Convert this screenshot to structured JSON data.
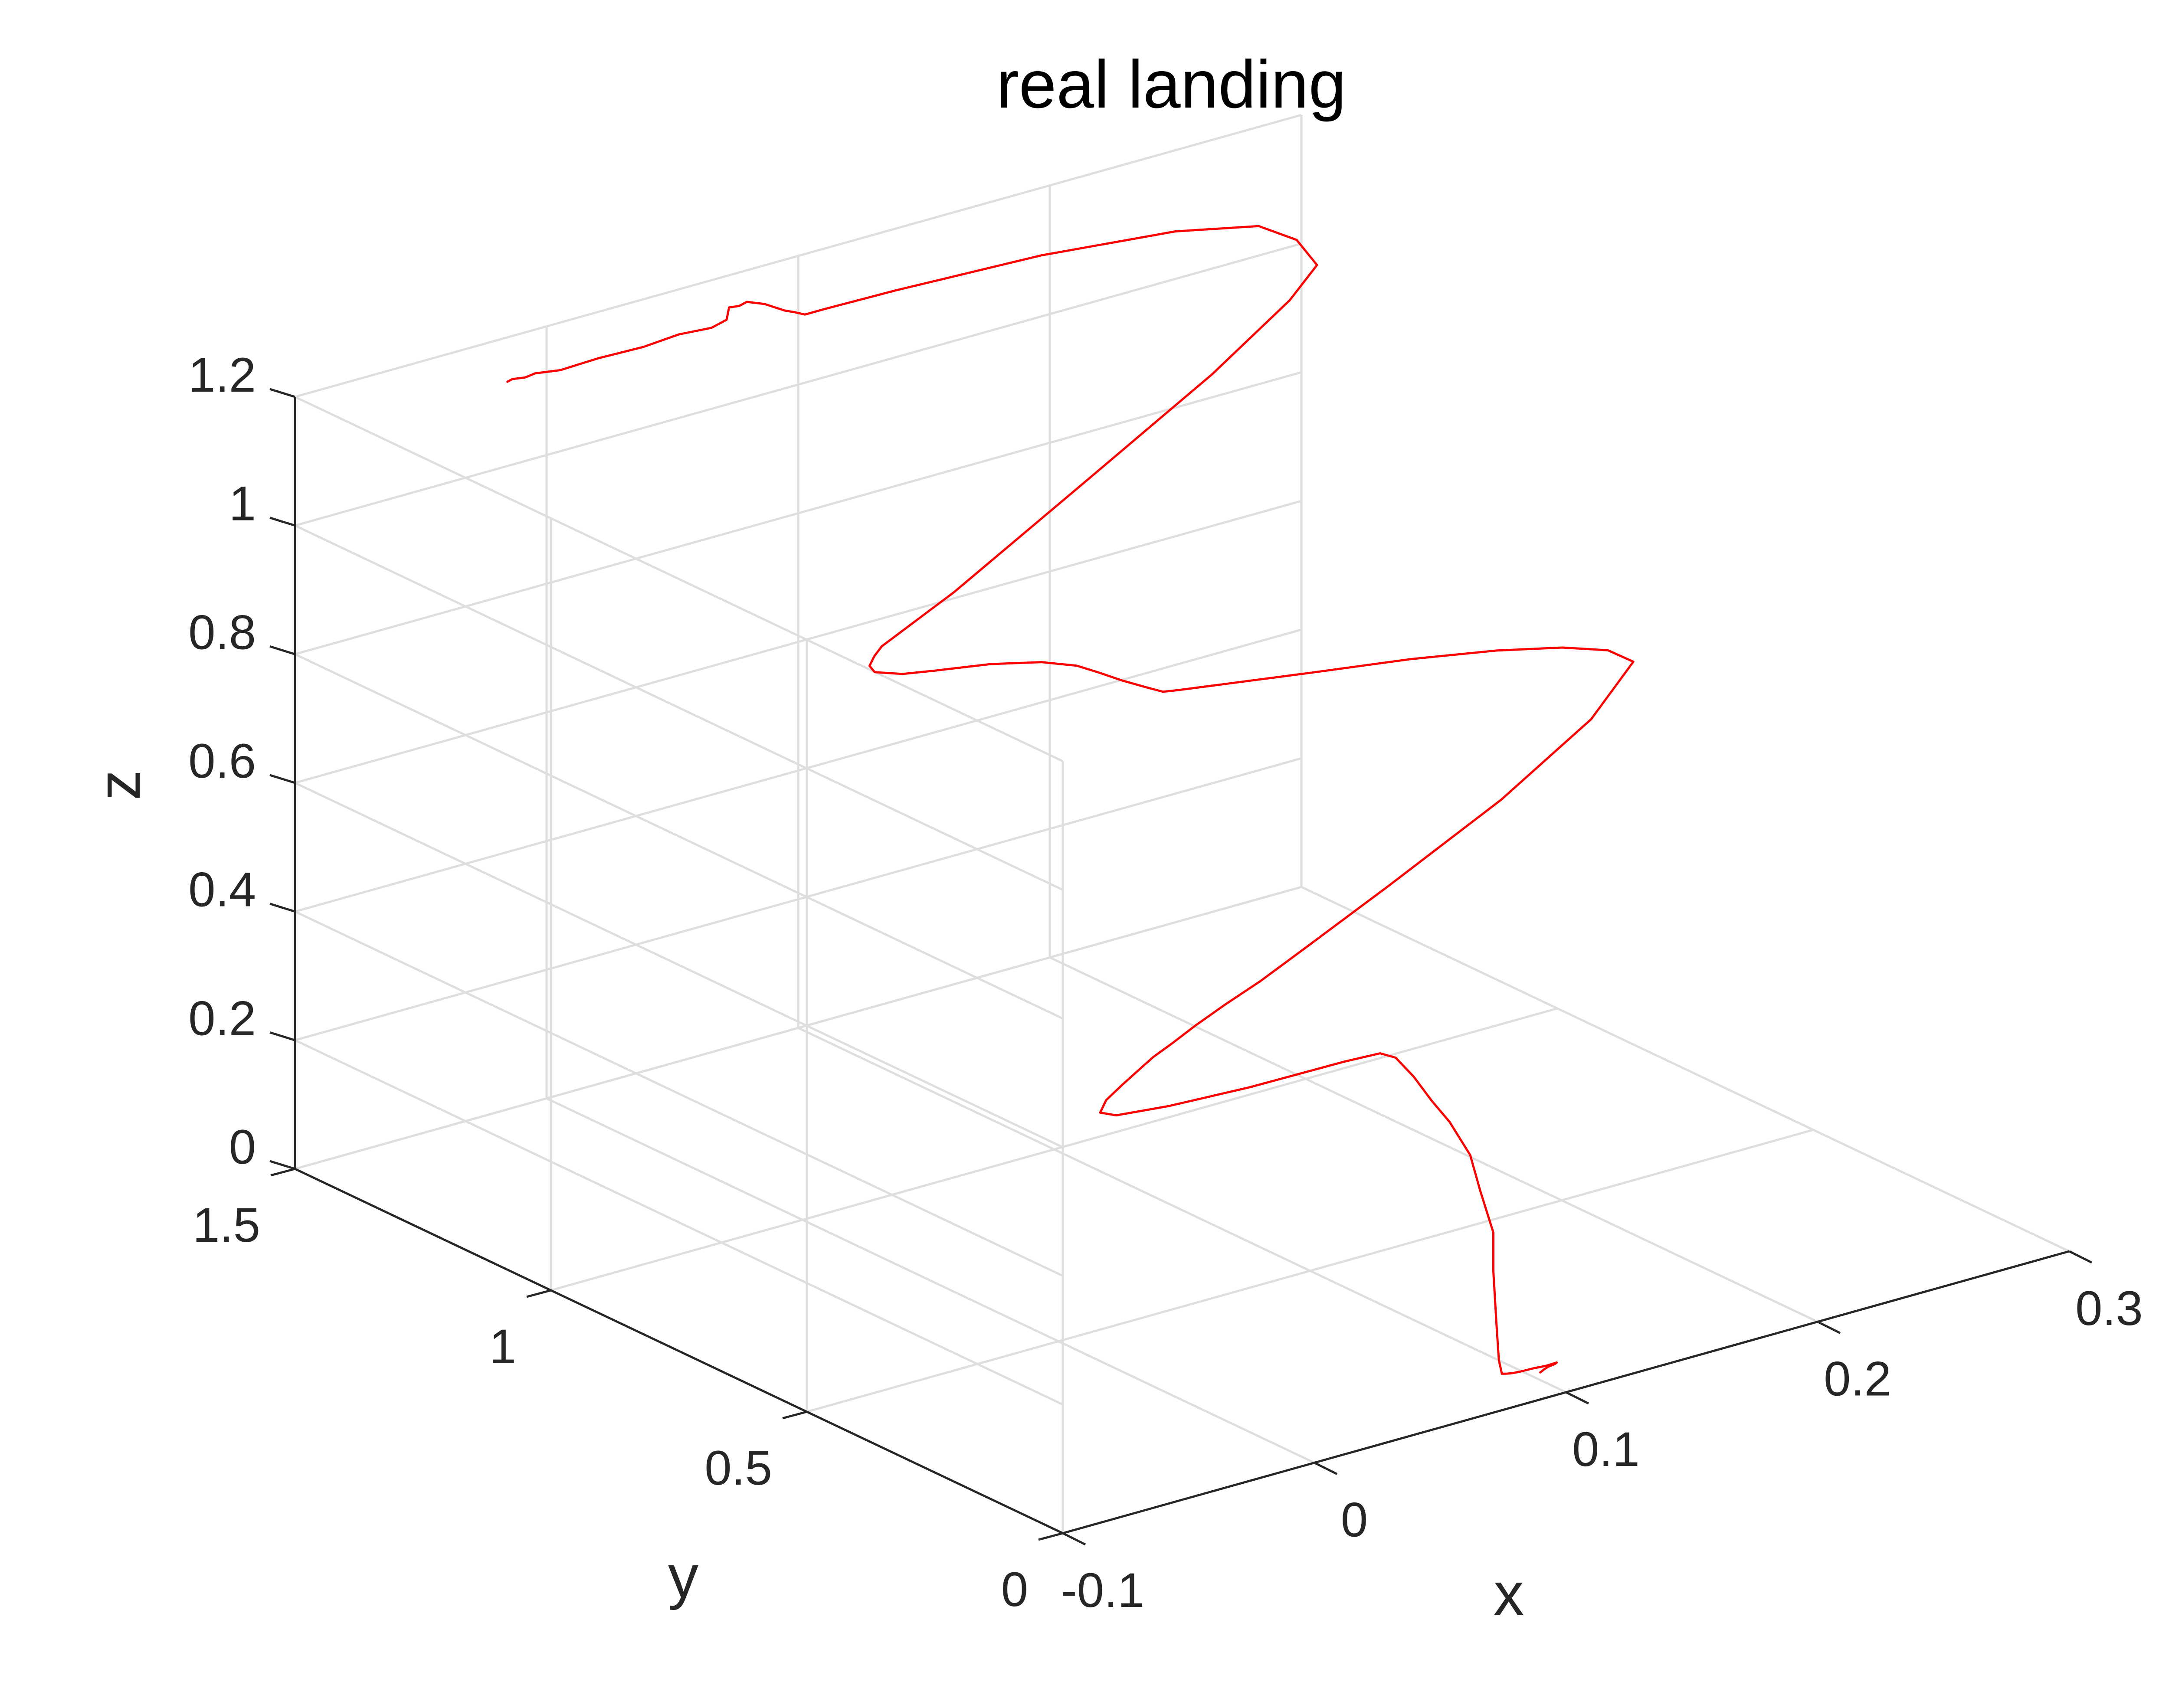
{
  "chart_data": {
    "type": "line3d",
    "title": "real landing",
    "xlabel": "x",
    "ylabel": "y",
    "zlabel": "z",
    "xlim": [
      -0.1,
      0.3
    ],
    "ylim": [
      0,
      1.5
    ],
    "zlim": [
      0,
      1.2
    ],
    "x_ticks": [
      -0.1,
      0,
      0.1,
      0.2,
      0.3
    ],
    "x_tick_labels": [
      "-0.1",
      "0",
      "0.1",
      "0.2",
      "0.3"
    ],
    "y_ticks": [
      0,
      0.5,
      1,
      1.5
    ],
    "y_tick_labels": [
      "0",
      "0.5",
      "1",
      "1.5"
    ],
    "z_ticks": [
      0,
      0.2,
      0.4,
      0.6,
      0.8,
      1,
      1.2
    ],
    "z_tick_labels": [
      "0",
      "0.2",
      "0.4",
      "0.6",
      "0.8",
      "1",
      "1.2"
    ],
    "grid": true,
    "colors": {
      "line": "#ff0000",
      "grid": "#dedede",
      "axis": "#262626"
    },
    "series": [
      {
        "x": [
          0.104,
          0.106,
          0.108,
          0.111,
          0.112,
          0.108,
          0.103,
          0.098,
          0.095,
          0.093,
          0.091,
          0.09,
          0.089,
          0.088,
          0.088,
          0.083,
          0.079,
          0.071,
          0.064,
          0.057,
          0.05,
          0.044,
          0.03,
          -0.007,
          -0.038,
          -0.058,
          -0.064,
          -0.061,
          -0.054,
          -0.046,
          -0.04,
          -0.032,
          -0.021,
          -0.008,
          0.008,
          0.03,
          0.068,
          0.123,
          0.171,
          0.2,
          0.198,
          0.188,
          0.17,
          0.144,
          0.113,
          0.085,
          0.072,
          0.067,
          0.063,
          0.058,
          0.053,
          0.048,
          0.038,
          0.022,
          0.004,
          -0.006,
          -0.012,
          -0.01,
          -0.004,
          0.003,
          0.04,
          0.11,
          0.175,
          0.218,
          0.235,
          0.233,
          0.224,
          0.197,
          0.15,
          0.096,
          0.07,
          0.062,
          0.06,
          0.056,
          0.05,
          0.045,
          0.042,
          0.042,
          0.039,
          0.033,
          0.022,
          0.008,
          -0.008,
          -0.023,
          -0.031,
          -0.035,
          -0.038,
          -0.04
        ],
        "y": [
          0.07,
          0.072,
          0.074,
          0.076,
          0.077,
          0.078,
          0.079,
          0.08,
          0.08,
          0.081,
          0.081,
          0.082,
          0.082,
          0.083,
          0.083,
          0.084,
          0.084,
          0.085,
          0.085,
          0.086,
          0.087,
          0.088,
          0.089,
          0.093,
          0.098,
          0.102,
          0.104,
          0.107,
          0.11,
          0.114,
          0.118,
          0.122,
          0.128,
          0.135,
          0.145,
          0.16,
          0.19,
          0.24,
          0.3,
          0.36,
          0.4,
          0.44,
          0.48,
          0.52,
          0.56,
          0.6,
          0.62,
          0.625,
          0.64,
          0.66,
          0.68,
          0.7,
          0.72,
          0.74,
          0.76,
          0.775,
          0.8,
          0.82,
          0.84,
          0.86,
          0.9,
          0.98,
          1.06,
          1.12,
          1.15,
          1.18,
          1.21,
          1.24,
          1.27,
          1.29,
          1.3,
          1.3,
          1.31,
          1.31,
          1.32,
          1.33,
          1.33,
          1.35,
          1.34,
          1.34,
          1.35,
          1.35,
          1.36,
          1.36,
          1.37,
          1.37,
          1.38,
          1.38
        ],
        "z": [
          0.0,
          0.002,
          0.003,
          0.003,
          0.004,
          0.003,
          0.004,
          0.004,
          0.005,
          0.006,
          0.008,
          0.03,
          0.09,
          0.17,
          0.23,
          0.3,
          0.36,
          0.42,
          0.46,
          0.505,
          0.542,
          0.555,
          0.557,
          0.556,
          0.559,
          0.565,
          0.575,
          0.59,
          0.605,
          0.62,
          0.63,
          0.64,
          0.655,
          0.67,
          0.685,
          0.71,
          0.75,
          0.805,
          0.855,
          0.89,
          0.895,
          0.895,
          0.895,
          0.895,
          0.893,
          0.89,
          0.888,
          0.889,
          0.895,
          0.903,
          0.913,
          0.922,
          0.931,
          0.938,
          0.94,
          0.94,
          0.94,
          0.94,
          0.941,
          0.941,
          0.97,
          1.04,
          1.1,
          1.145,
          1.17,
          1.2,
          1.22,
          1.23,
          1.233,
          1.23,
          1.226,
          1.226,
          1.228,
          1.235,
          1.248,
          1.253,
          1.25,
          1.24,
          1.228,
          1.222,
          1.22,
          1.216,
          1.212,
          1.21,
          1.21,
          1.208,
          1.205,
          1.203
        ]
      }
    ]
  }
}
